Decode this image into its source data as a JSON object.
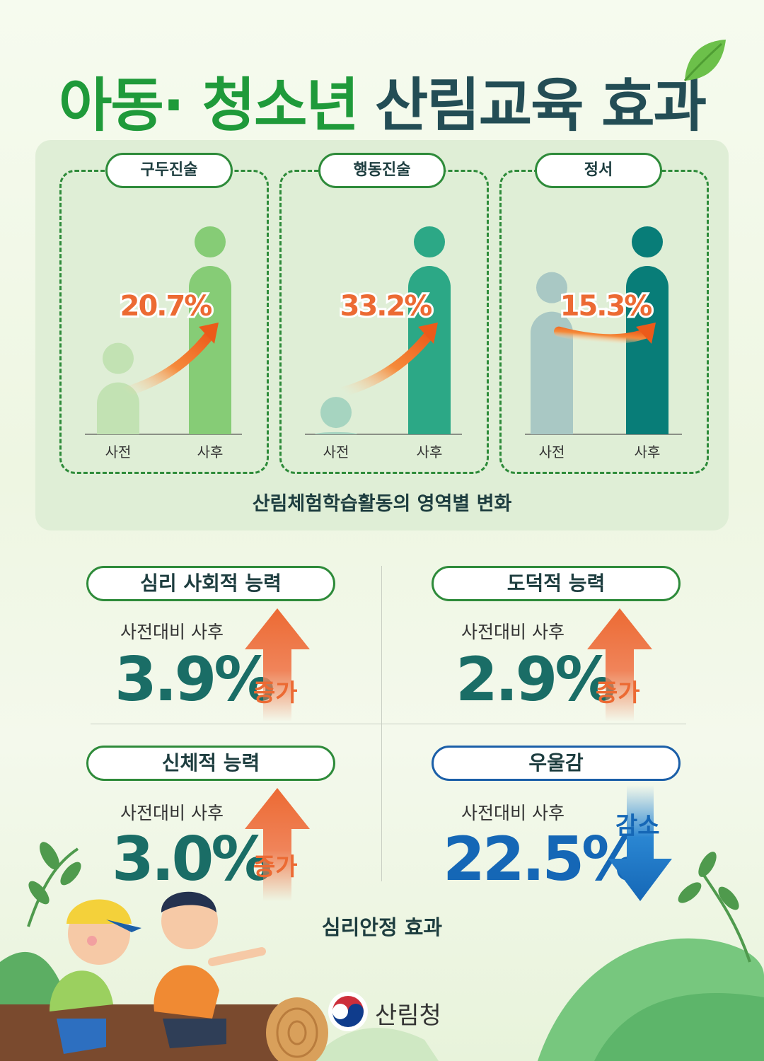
{
  "title": {
    "part1": "아동· 청소년",
    "part2": "산림교육 효과"
  },
  "panel_caption": "산림체험학습활동의 영역별 변화",
  "footer_caption": "심리안정 효과",
  "org_name": "산림청",
  "colors": {
    "title_green": "#1f9a3a",
    "title_dark": "#234d55",
    "accent_orange": "#ec6a33",
    "number_teal": "#1a6d66",
    "decrease_blue": "#1567b6"
  },
  "chart_data": [
    {
      "type": "bar",
      "title": "구두진술",
      "categories": [
        "사전",
        "사후"
      ],
      "values": [
        44,
        100
      ],
      "annotation": "20.7%",
      "series_colors": [
        "#c2e2b3",
        "#86cc76"
      ]
    },
    {
      "type": "bar",
      "title": "행동진술",
      "categories": [
        "사전",
        "사후"
      ],
      "values": [
        18,
        100
      ],
      "annotation": "33.2%",
      "series_colors": [
        "#a6d4c0",
        "#2ca886"
      ]
    },
    {
      "type": "bar",
      "title": "정서",
      "categories": [
        "사전",
        "사후"
      ],
      "values": [
        78,
        100
      ],
      "annotation": "15.3%",
      "series_colors": [
        "#a9c8c4",
        "#087d78"
      ]
    }
  ],
  "stats": [
    {
      "label": "심리 사회적 능력",
      "sub": "사전대비 사후",
      "value": "3.9%",
      "change": "증가",
      "direction": "up"
    },
    {
      "label": "도덕적 능력",
      "sub": "사전대비 사후",
      "value": "2.9%",
      "change": "증가",
      "direction": "up"
    },
    {
      "label": "신체적 능력",
      "sub": "사전대비 사후",
      "value": "3.0%",
      "change": "증가",
      "direction": "up"
    },
    {
      "label": "우울감",
      "sub": "사전대비 사후",
      "value": "22.5%",
      "change": "감소",
      "direction": "down"
    }
  ]
}
